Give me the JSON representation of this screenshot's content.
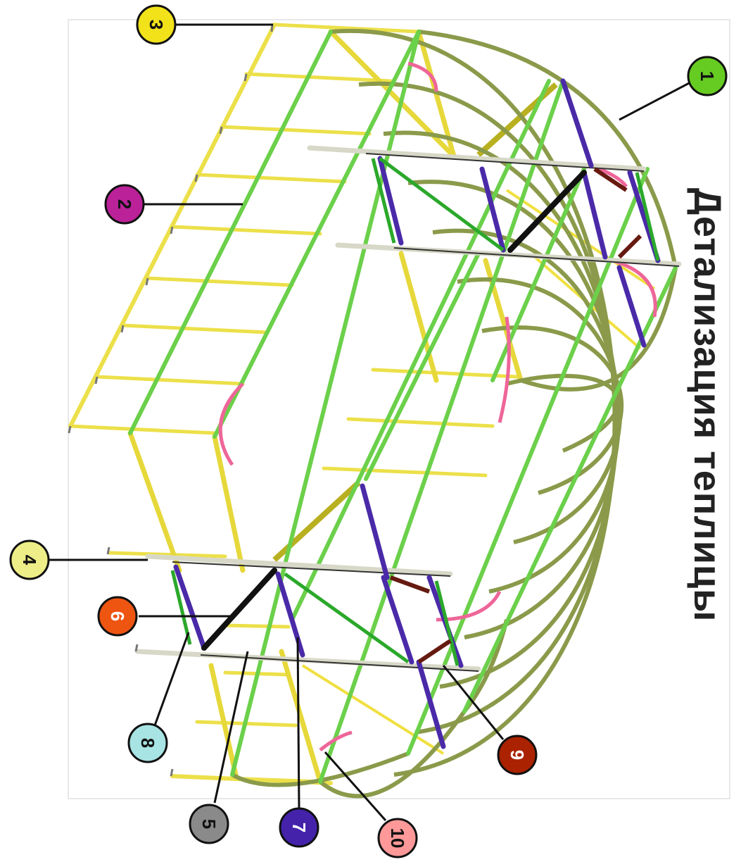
{
  "title": "Детализация теплицы",
  "colors": {
    "arch": "#8a9a4a",
    "longitudinal": "#6bd04a",
    "lintel": "#f0e040",
    "door_bar": "#4a2aa8",
    "post": "#dcdcc8",
    "brace": "#111111",
    "pink_brace": "#ee6699"
  },
  "callouts": [
    {
      "id": "1",
      "number": "1",
      "color": "#66cc22",
      "text_color": "#111111"
    },
    {
      "id": "2",
      "number": "2",
      "color": "#bb2299",
      "text_color": "#111111"
    },
    {
      "id": "3",
      "number": "3",
      "color": "#f2e21a",
      "text_color": "#111111"
    },
    {
      "id": "4",
      "number": "4",
      "color": "#eeee88",
      "text_color": "#111111"
    },
    {
      "id": "5",
      "number": "5",
      "color": "#8a8a8a",
      "text_color": "#111111"
    },
    {
      "id": "6",
      "number": "6",
      "color": "#ee5511",
      "text_color": "#ffffff"
    },
    {
      "id": "7",
      "number": "7",
      "color": "#4422aa",
      "text_color": "#ffffff"
    },
    {
      "id": "8",
      "number": "8",
      "color": "#a8e4e4",
      "text_color": "#111111"
    },
    {
      "id": "9",
      "number": "9",
      "color": "#aa2200",
      "text_color": "#ffffff"
    },
    {
      "id": "10",
      "number": "10",
      "color": "#ff9999",
      "text_color": "#111111"
    }
  ]
}
